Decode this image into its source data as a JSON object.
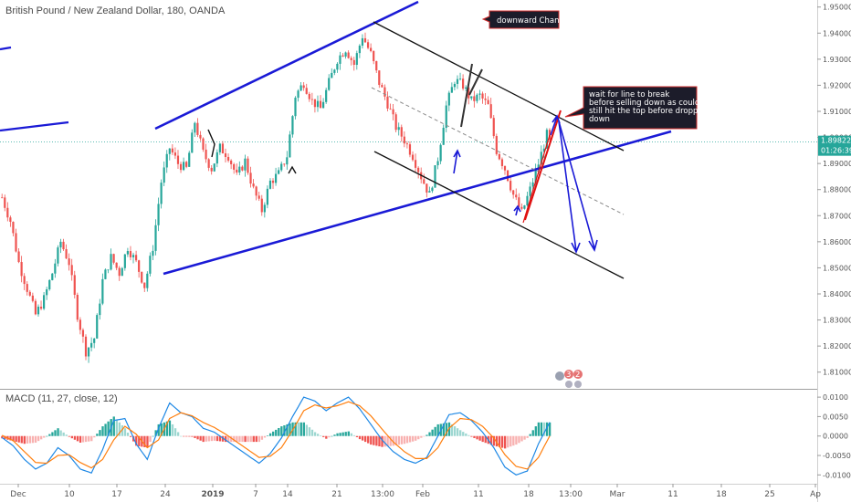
{
  "chart_data": {
    "type": "candlestick",
    "title": "British Pound / New Zealand Dollar, 180, OANDA",
    "price_axis": {
      "ticks": [
        "1.95000",
        "1.94000",
        "1.93000",
        "1.92000",
        "1.91000",
        "1.90000",
        "1.89000",
        "1.88000",
        "1.87000",
        "1.86000",
        "1.85000",
        "1.84000",
        "1.83000",
        "1.82000",
        "1.81000"
      ],
      "range": [
        1.805,
        1.952
      ],
      "current_price": "1.89822",
      "countdown": "01:26:39",
      "current_value": 1.89822
    },
    "time_axis": {
      "labels": [
        "Dec",
        "10",
        "17",
        "24",
        "2019",
        "7",
        "14",
        "21",
        "13:00",
        "Feb",
        "11",
        "18",
        "13:00",
        "Mar",
        "11",
        "18",
        "25",
        "Ap"
      ]
    },
    "candles": [],
    "close_path": [
      [
        0,
        1.877
      ],
      [
        3,
        1.868
      ],
      [
        6,
        1.852
      ],
      [
        9,
        1.842
      ],
      [
        12,
        1.832
      ],
      [
        15,
        1.838
      ],
      [
        18,
        1.848
      ],
      [
        21,
        1.86
      ],
      [
        24,
        1.852
      ],
      [
        27,
        1.832
      ],
      [
        30,
        1.818
      ],
      [
        33,
        1.823
      ],
      [
        36,
        1.845
      ],
      [
        39,
        1.854
      ],
      [
        42,
        1.848
      ],
      [
        45,
        1.858
      ],
      [
        48,
        1.852
      ],
      [
        51,
        1.843
      ],
      [
        54,
        1.858
      ],
      [
        57,
        1.883
      ],
      [
        60,
        1.896
      ],
      [
        63,
        1.89
      ],
      [
        66,
        1.888
      ],
      [
        69,
        1.906
      ],
      [
        72,
        1.894
      ],
      [
        75,
        1.888
      ],
      [
        78,
        1.896
      ],
      [
        81,
        1.893
      ],
      [
        84,
        1.885
      ],
      [
        87,
        1.891
      ],
      [
        90,
        1.88
      ],
      [
        93,
        1.872
      ],
      [
        96,
        1.883
      ],
      [
        99,
        1.886
      ],
      [
        102,
        1.893
      ],
      [
        105,
        1.916
      ],
      [
        108,
        1.921
      ],
      [
        111,
        1.914
      ],
      [
        114,
        1.911
      ],
      [
        117,
        1.921
      ],
      [
        120,
        1.93
      ],
      [
        123,
        1.934
      ],
      [
        126,
        1.928
      ],
      [
        129,
        1.939
      ],
      [
        132,
        1.932
      ],
      [
        135,
        1.921
      ],
      [
        138,
        1.913
      ],
      [
        141,
        1.904
      ],
      [
        144,
        1.899
      ],
      [
        147,
        1.893
      ],
      [
        150,
        1.885
      ],
      [
        153,
        1.878
      ],
      [
        156,
        1.892
      ],
      [
        159,
        1.912
      ],
      [
        162,
        1.922
      ],
      [
        165,
        1.92
      ],
      [
        168,
        1.914
      ],
      [
        171,
        1.916
      ],
      [
        174,
        1.912
      ],
      [
        177,
        1.895
      ],
      [
        180,
        1.888
      ],
      [
        183,
        1.878
      ],
      [
        186,
        1.871
      ],
      [
        189,
        1.88
      ],
      [
        192,
        1.89
      ],
      [
        195,
        1.901
      ],
      [
        196,
        1.898
      ]
    ],
    "macd": {
      "label": "MACD (11, 27, close, 12)",
      "ticks": [
        "0.0100",
        "0.0050",
        "0.0000",
        "-0.0050",
        "-0.0100"
      ],
      "range": [
        -0.0118,
        0.0112
      ],
      "macd_line": [
        [
          0,
          -0.0004
        ],
        [
          4,
          -0.0025
        ],
        [
          8,
          -0.006
        ],
        [
          12,
          -0.0085
        ],
        [
          16,
          -0.007
        ],
        [
          20,
          -0.003
        ],
        [
          24,
          -0.005
        ],
        [
          28,
          -0.0085
        ],
        [
          32,
          -0.0095
        ],
        [
          36,
          -0.0035
        ],
        [
          40,
          0.004
        ],
        [
          44,
          0.0045
        ],
        [
          48,
          -0.002
        ],
        [
          52,
          -0.006
        ],
        [
          56,
          0.002
        ],
        [
          60,
          0.0085
        ],
        [
          64,
          0.006
        ],
        [
          68,
          0.005
        ],
        [
          72,
          0.002
        ],
        [
          76,
          0.001
        ],
        [
          80,
          -0.001
        ],
        [
          84,
          -0.003
        ],
        [
          88,
          -0.005
        ],
        [
          92,
          -0.007
        ],
        [
          96,
          -0.0045
        ],
        [
          100,
          -0.0005
        ],
        [
          104,
          0.005
        ],
        [
          108,
          0.01
        ],
        [
          112,
          0.009
        ],
        [
          116,
          0.0065
        ],
        [
          120,
          0.0085
        ],
        [
          124,
          0.01
        ],
        [
          128,
          0.007
        ],
        [
          132,
          0.003
        ],
        [
          136,
          -0.001
        ],
        [
          140,
          -0.004
        ],
        [
          144,
          -0.006
        ],
        [
          148,
          -0.007
        ],
        [
          152,
          -0.0055
        ],
        [
          156,
          0.0
        ],
        [
          160,
          0.0055
        ],
        [
          164,
          0.006
        ],
        [
          168,
          0.004
        ],
        [
          172,
          0.001
        ],
        [
          176,
          -0.003
        ],
        [
          180,
          -0.008
        ],
        [
          184,
          -0.01
        ],
        [
          188,
          -0.009
        ],
        [
          192,
          -0.002
        ],
        [
          196,
          0.0035
        ]
      ],
      "signal_line": [
        [
          0,
          0.0002
        ],
        [
          4,
          -0.0012
        ],
        [
          8,
          -0.004
        ],
        [
          12,
          -0.0068
        ],
        [
          16,
          -0.007
        ],
        [
          20,
          -0.005
        ],
        [
          24,
          -0.0048
        ],
        [
          28,
          -0.0068
        ],
        [
          32,
          -0.0082
        ],
        [
          36,
          -0.006
        ],
        [
          40,
          -0.001
        ],
        [
          44,
          0.0025
        ],
        [
          48,
          0.0005
        ],
        [
          52,
          -0.003
        ],
        [
          56,
          -0.001
        ],
        [
          60,
          0.0045
        ],
        [
          64,
          0.006
        ],
        [
          68,
          0.0052
        ],
        [
          72,
          0.0035
        ],
        [
          76,
          0.0022
        ],
        [
          80,
          0.0005
        ],
        [
          84,
          -0.0015
        ],
        [
          88,
          -0.0035
        ],
        [
          92,
          -0.0055
        ],
        [
          96,
          -0.0052
        ],
        [
          100,
          -0.003
        ],
        [
          104,
          0.0015
        ],
        [
          108,
          0.0065
        ],
        [
          112,
          0.008
        ],
        [
          116,
          0.0072
        ],
        [
          120,
          0.0078
        ],
        [
          124,
          0.0088
        ],
        [
          128,
          0.0078
        ],
        [
          132,
          0.0052
        ],
        [
          136,
          0.0018
        ],
        [
          140,
          -0.0015
        ],
        [
          144,
          -0.004
        ],
        [
          148,
          -0.0058
        ],
        [
          152,
          -0.0058
        ],
        [
          156,
          -0.003
        ],
        [
          160,
          0.002
        ],
        [
          164,
          0.0045
        ],
        [
          168,
          0.0042
        ],
        [
          172,
          0.0025
        ],
        [
          176,
          -0.0005
        ],
        [
          180,
          -0.0048
        ],
        [
          184,
          -0.0078
        ],
        [
          188,
          -0.0085
        ],
        [
          192,
          -0.0055
        ],
        [
          196,
          0.0
        ]
      ]
    },
    "annotations": {
      "title_box": "downward Chanel",
      "note_lines": [
        "wait for line to break",
        "before selling down as could",
        "still hit the top before dropping",
        "down"
      ],
      "badge_a": "3",
      "badge_b": "2"
    },
    "colors": {
      "up": "#26a69a",
      "down": "#ef5350",
      "blue_line": "#1a1ad6",
      "black_line": "#111111",
      "red_line": "#e01010",
      "macd": "#1e88e5",
      "signal": "#ff7f0e",
      "hist_up": "#26a69a",
      "hist_down": "#ef5350",
      "note_bg": "#1c1c2a",
      "note_border": "#d32f2f",
      "price_label_bg": "#26a69a"
    }
  }
}
